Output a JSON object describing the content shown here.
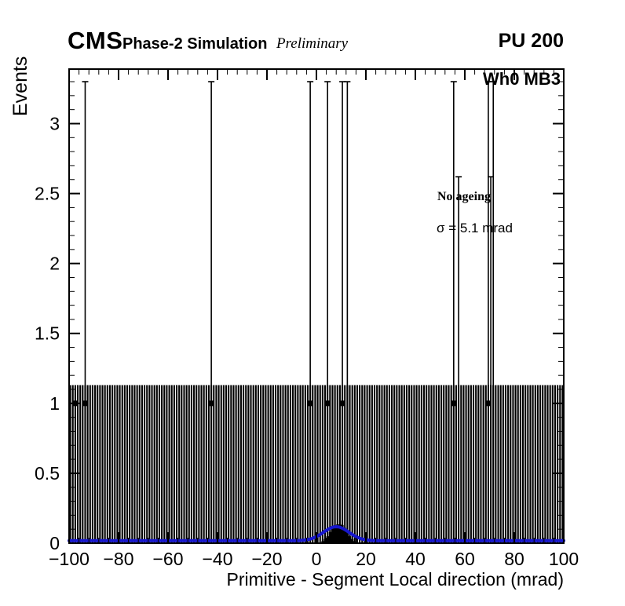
{
  "header": {
    "experiment": "CMS",
    "simulation_label": "Phase-2 Simulation",
    "preliminary_label": "Preliminary",
    "pileup_label": "PU 200"
  },
  "plot": {
    "chamber_label": "Wh0 MB3",
    "ageing_label": "No ageing",
    "sigma_label": "σ = 5.1 mrad"
  },
  "chart_data": {
    "type": "bar",
    "subtype": "root-histogram-with-poisson-error-bars",
    "title": "",
    "xlabel": "Primitive - Segment Local direction (mrad)",
    "ylabel": "Events",
    "xlim": [
      -100,
      100
    ],
    "ylim": [
      0,
      3.39
    ],
    "grid": false,
    "x_major_ticks": [
      -100,
      -80,
      -60,
      -40,
      -20,
      0,
      20,
      40,
      60,
      80,
      100
    ],
    "x_tick_labels": [
      "−100",
      "−80",
      "−60",
      "−40",
      "−20",
      "0",
      "20",
      "40",
      "60",
      "80",
      "100"
    ],
    "x_minor_step": 4,
    "y_major_ticks": [
      0,
      0.5,
      1,
      1.5,
      2,
      2.5,
      3
    ],
    "y_tick_labels": [
      "0",
      "0.5",
      "1",
      "1.5",
      "2",
      "2.5",
      "3"
    ],
    "y_minor_step": 0.1,
    "band": {
      "comment": "dense forest of one-entry bins across full range",
      "x_start": -100,
      "x_end": 100,
      "bin_width": 1,
      "top": 1.13,
      "color": "#000000"
    },
    "marker_y": 1,
    "error_bars": [
      {
        "x": -97.5,
        "top": null,
        "marker": true
      },
      {
        "x": -93.5,
        "top": 3.3,
        "marker": true
      },
      {
        "x": -42.5,
        "top": 3.3,
        "marker": true
      },
      {
        "x": -2.5,
        "top": 3.3,
        "marker": true
      },
      {
        "x": 4.5,
        "top": 3.3,
        "marker": true
      },
      {
        "x": 10.5,
        "top": 3.3,
        "marker": true
      },
      {
        "x": 12.5,
        "top": 3.3,
        "marker": false
      },
      {
        "x": 55.5,
        "top": 3.3,
        "marker": true
      },
      {
        "x": 57.5,
        "top": 2.62,
        "marker": false
      },
      {
        "x": 69.5,
        "top": 3.3,
        "marker": true
      },
      {
        "x": 70.5,
        "top": 2.62,
        "marker": false
      },
      {
        "x": 71.5,
        "top": 3.3,
        "marker": false
      }
    ],
    "error_bar_bottom": 0.17,
    "signal_peak": {
      "x_start": 2,
      "bin_width": 1,
      "heights": [
        0.015,
        0.03,
        0.05,
        0.08,
        0.11,
        0.13,
        0.135,
        0.135,
        0.13,
        0.11,
        0.08,
        0.05,
        0.03,
        0.015
      ],
      "color": "#000000"
    },
    "fit_curve": {
      "shape": "gaussian",
      "mean": 8,
      "sigma": 5.1,
      "amplitude": 0.1,
      "baseline": 0.018,
      "color": "#1717cd",
      "width": 4
    },
    "frame_color": "#000000"
  }
}
